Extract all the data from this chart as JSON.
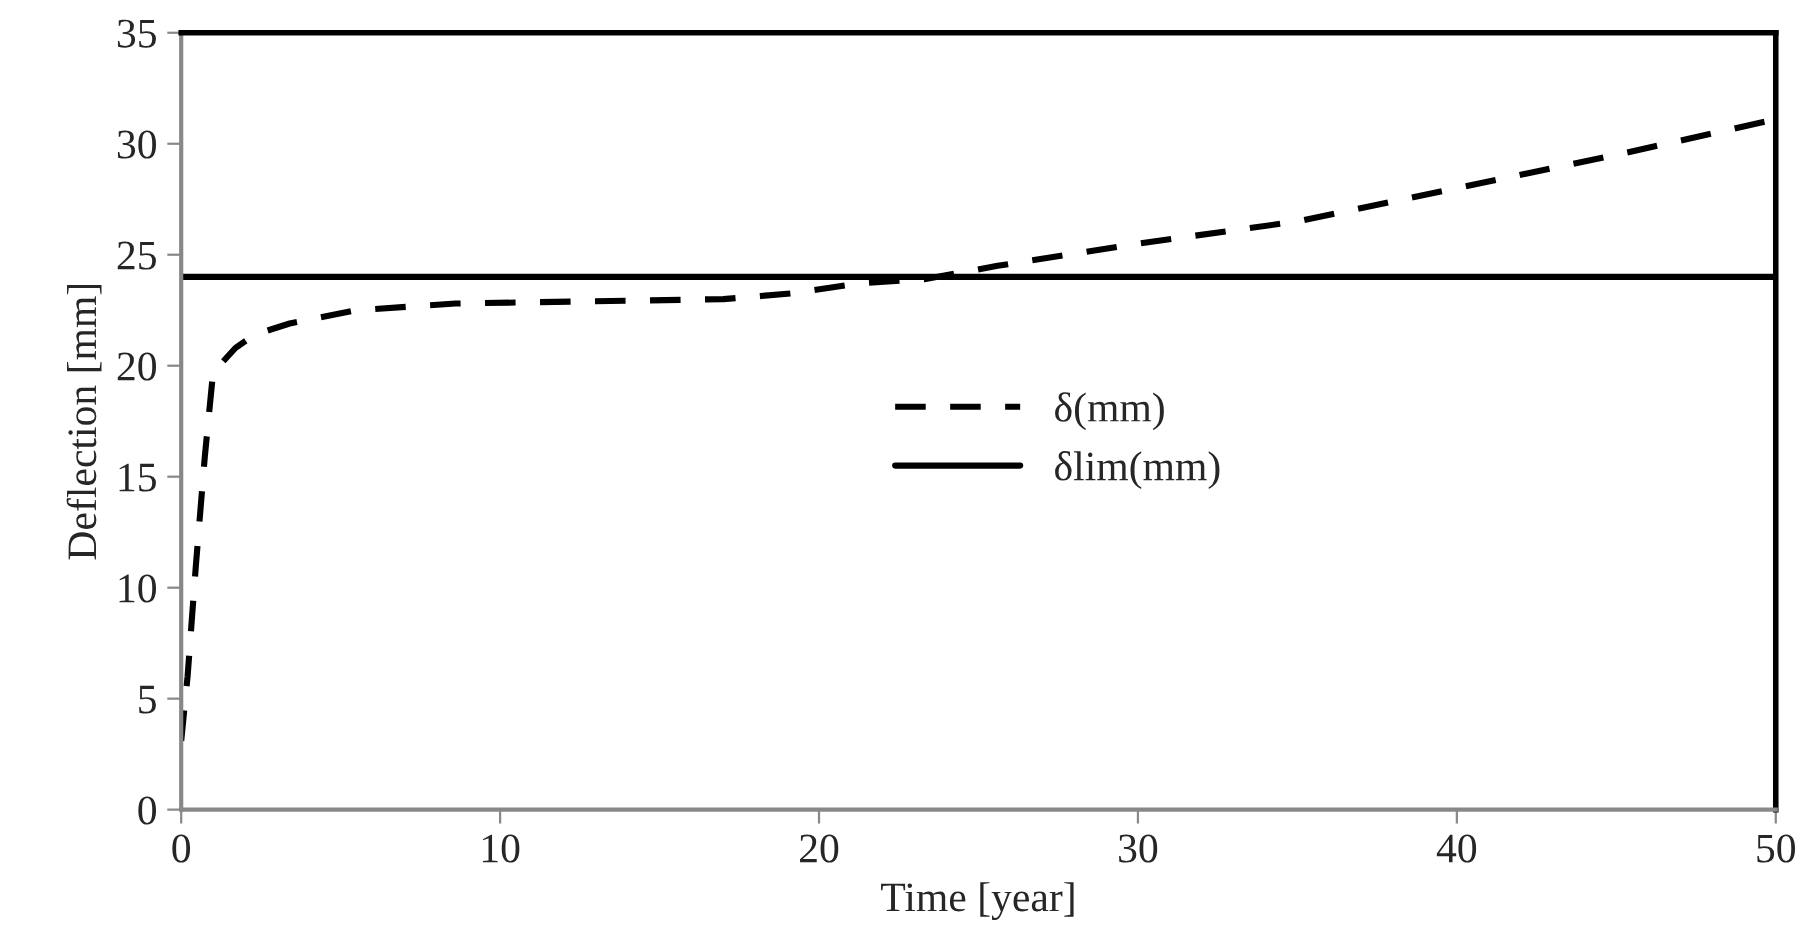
{
  "chart_data": {
    "type": "line",
    "xlabel": "Time [year]",
    "ylabel": "Deflection [mm]",
    "xlim": [
      0,
      50
    ],
    "xticks": [
      0,
      10,
      20,
      30,
      40,
      50
    ],
    "ylim": [
      0,
      35
    ],
    "yticks": [
      0,
      5,
      10,
      15,
      20,
      25,
      30,
      35
    ],
    "grid": false,
    "legend": "center",
    "marker": "none",
    "series": [
      {
        "name": "δ(mm)",
        "color": "#000000",
        "line_style": "dashed",
        "x": [
          0,
          0.2,
          0.46,
          0.74,
          1.0,
          1.7,
          2.3,
          3.4,
          5.5,
          8.6,
          12.8,
          17,
          19.1,
          21.2,
          23.3,
          25.6,
          30,
          35,
          40,
          45,
          50
        ],
        "values": [
          3.1,
          6,
          11,
          15.9,
          19.7,
          20.8,
          21.4,
          21.9,
          22.5,
          22.8,
          22.9,
          23.0,
          23.25,
          23.7,
          23.9,
          24.5,
          25.5,
          26.5,
          28.0,
          29.5,
          31.1
        ]
      },
      {
        "name": "δlim(mm)",
        "color": "#000000",
        "line_style": "solid",
        "x": [
          0,
          50
        ],
        "values": [
          24,
          24
        ]
      }
    ]
  }
}
